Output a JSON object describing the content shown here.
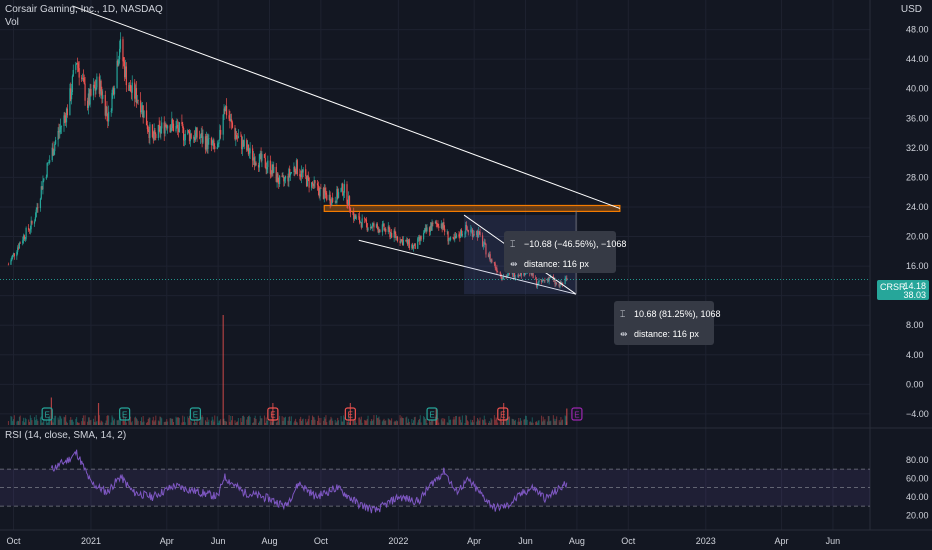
{
  "legend": {
    "title": "Corsair Gaming, Inc., 1D, NASDAQ",
    "vol_label": "Vol",
    "rsi_label": "RSI (14, close, SMA, 14, 2)",
    "currency": "USD"
  },
  "price_badge": {
    "symbol": "CRSR",
    "price": "14.18",
    "volume": "38.03"
  },
  "measure_tooltips": [
    {
      "change": "−10.68 (−46.56%), −1068",
      "distance": "distance: 116 px"
    },
    {
      "change": "10.68 (81.25%), 1068",
      "distance": "distance: 116 px"
    }
  ],
  "colors": {
    "background": "#131722",
    "up": "#26a69a",
    "down": "#ef5350",
    "trendline": "#ffffff",
    "zone": "#f57c00",
    "rsi_line": "#7e57c2",
    "rsi_band": "#7e57c2",
    "measure_box": "#5b6bb5"
  },
  "chart_data": {
    "type": "candlestick",
    "title": "Corsair Gaming, Inc., 1D, NASDAQ",
    "price_axis": {
      "range": [
        -5.5,
        52
      ],
      "ticks": [
        "48.00",
        "44.00",
        "40.00",
        "36.00",
        "32.00",
        "28.00",
        "24.00",
        "20.00",
        "16.00",
        "12.00",
        "8.00",
        "4.00",
        "0.00",
        "−4.00"
      ],
      "tick_values": [
        48,
        44,
        40,
        36,
        32,
        28,
        24,
        20,
        16,
        12,
        8,
        4,
        0,
        -4
      ]
    },
    "time_axis": {
      "labels": [
        "Oct",
        "2021",
        "Apr",
        "Jun",
        "Aug",
        "Oct",
        "2022",
        "Apr",
        "Jun",
        "Aug",
        "Oct",
        "2023",
        "Apr",
        "Jun"
      ],
      "dates": [
        "2020-10-01",
        "2021-01-01",
        "2021-04-01",
        "2021-06-01",
        "2021-08-01",
        "2021-10-01",
        "2022-01-01",
        "2022-04-01",
        "2022-06-01",
        "2022-08-01",
        "2022-10-01",
        "2023-01-01",
        "2023-04-01",
        "2023-06-01"
      ]
    },
    "close_path": [
      [
        "2020-09-25",
        16.2
      ],
      [
        "2020-10-10",
        19.5
      ],
      [
        "2020-10-25",
        22.0
      ],
      [
        "2020-11-05",
        27.5
      ],
      [
        "2020-11-20",
        33.0
      ],
      [
        "2020-12-05",
        37.5
      ],
      [
        "2020-12-15",
        44.0
      ],
      [
        "2020-12-28",
        38.0
      ],
      [
        "2021-01-10",
        41.0
      ],
      [
        "2021-01-22",
        36.0
      ],
      [
        "2021-02-04",
        46.0
      ],
      [
        "2021-02-15",
        40.0
      ],
      [
        "2021-02-28",
        38.5
      ],
      [
        "2021-03-15",
        33.0
      ],
      [
        "2021-04-01",
        35.5
      ],
      [
        "2021-04-20",
        34.0
      ],
      [
        "2021-05-10",
        33.5
      ],
      [
        "2021-06-01",
        31.5
      ],
      [
        "2021-06-08",
        38.0
      ],
      [
        "2021-06-20",
        34.0
      ],
      [
        "2021-07-10",
        31.0
      ],
      [
        "2021-08-01",
        29.5
      ],
      [
        "2021-08-15",
        27.0
      ],
      [
        "2021-09-01",
        29.5
      ],
      [
        "2021-09-15",
        27.5
      ],
      [
        "2021-10-01",
        26.0
      ],
      [
        "2021-10-15",
        25.0
      ],
      [
        "2021-10-28",
        26.5
      ],
      [
        "2021-11-10",
        22.5
      ],
      [
        "2021-11-25",
        21.5
      ],
      [
        "2021-12-15",
        21.0
      ],
      [
        "2022-01-05",
        19.5
      ],
      [
        "2022-01-20",
        18.5
      ],
      [
        "2022-02-05",
        21.0
      ],
      [
        "2022-02-20",
        22.0
      ],
      [
        "2022-03-05",
        19.0
      ],
      [
        "2022-03-20",
        21.0
      ],
      [
        "2022-04-05",
        20.5
      ],
      [
        "2022-04-20",
        17.0
      ],
      [
        "2022-05-05",
        14.5
      ],
      [
        "2022-05-20",
        15.0
      ],
      [
        "2022-06-05",
        15.5
      ],
      [
        "2022-06-15",
        13.5
      ],
      [
        "2022-06-30",
        14.5
      ],
      [
        "2022-07-10",
        13.2
      ],
      [
        "2022-07-20",
        14.18
      ]
    ],
    "volume_spikes": [
      [
        "2020-11-15",
        0.25
      ],
      [
        "2021-01-10",
        0.2
      ],
      [
        "2021-06-07",
        1.0
      ],
      [
        "2021-08-05",
        0.2
      ],
      [
        "2021-11-05",
        0.2
      ],
      [
        "2022-02-15",
        0.15
      ],
      [
        "2022-05-06",
        0.2
      ],
      [
        "2022-07-20",
        0.15
      ]
    ],
    "earnings_markers": [
      {
        "date": "2020-11-10",
        "type": "E",
        "color": "green"
      },
      {
        "date": "2021-02-10",
        "type": "E",
        "color": "green"
      },
      {
        "date": "2021-05-05",
        "type": "E",
        "color": "green"
      },
      {
        "date": "2021-08-05",
        "type": "E",
        "color": "red"
      },
      {
        "date": "2021-11-05",
        "type": "E",
        "color": "red"
      },
      {
        "date": "2022-02-10",
        "type": "E",
        "color": "green"
      },
      {
        "date": "2022-05-05",
        "type": "E",
        "color": "red"
      },
      {
        "date": "2022-08-01",
        "type": "E",
        "color": "purple"
      }
    ],
    "trendlines": [
      {
        "from": [
          "2020-12-10",
          51.2
        ],
        "to": [
          "2022-09-21",
          23.8
        ]
      },
      {
        "from": [
          "2021-11-15",
          19.5
        ],
        "to": [
          "2022-07-31",
          12.2
        ]
      }
    ],
    "zones": [
      {
        "from": "2021-10-05",
        "to": "2022-09-21",
        "low": 23.4,
        "high": 24.2
      }
    ],
    "rsi": {
      "axis_ticks": [
        "80.00",
        "60.00",
        "40.00",
        "20.00"
      ],
      "tick_values": [
        80,
        60,
        40,
        20
      ],
      "range": [
        15,
        95
      ],
      "upper_band": 70,
      "mid": 50,
      "lower_band": 30,
      "path": [
        [
          "2020-11-15",
          70
        ],
        [
          "2020-11-25",
          75
        ],
        [
          "2020-12-05",
          80
        ],
        [
          "2020-12-15",
          88
        ],
        [
          "2021-01-01",
          55
        ],
        [
          "2021-01-20",
          45
        ],
        [
          "2021-02-05",
          62
        ],
        [
          "2021-02-20",
          45
        ],
        [
          "2021-03-15",
          40
        ],
        [
          "2021-04-10",
          52
        ],
        [
          "2021-05-10",
          45
        ],
        [
          "2021-06-01",
          40
        ],
        [
          "2021-06-08",
          62
        ],
        [
          "2021-07-01",
          45
        ],
        [
          "2021-08-01",
          38
        ],
        [
          "2021-08-20",
          30
        ],
        [
          "2021-09-05",
          55
        ],
        [
          "2021-09-25",
          40
        ],
        [
          "2021-10-20",
          50
        ],
        [
          "2021-11-15",
          32
        ],
        [
          "2021-12-05",
          25
        ],
        [
          "2022-01-01",
          40
        ],
        [
          "2022-01-25",
          35
        ],
        [
          "2022-02-10",
          55
        ],
        [
          "2022-02-25",
          68
        ],
        [
          "2022-03-10",
          45
        ],
        [
          "2022-03-25",
          58
        ],
        [
          "2022-04-10",
          42
        ],
        [
          "2022-04-25",
          28
        ],
        [
          "2022-05-10",
          30
        ],
        [
          "2022-05-30",
          45
        ],
        [
          "2022-06-10",
          50
        ],
        [
          "2022-06-25",
          38
        ],
        [
          "2022-07-10",
          48
        ],
        [
          "2022-07-20",
          55
        ]
      ]
    }
  }
}
